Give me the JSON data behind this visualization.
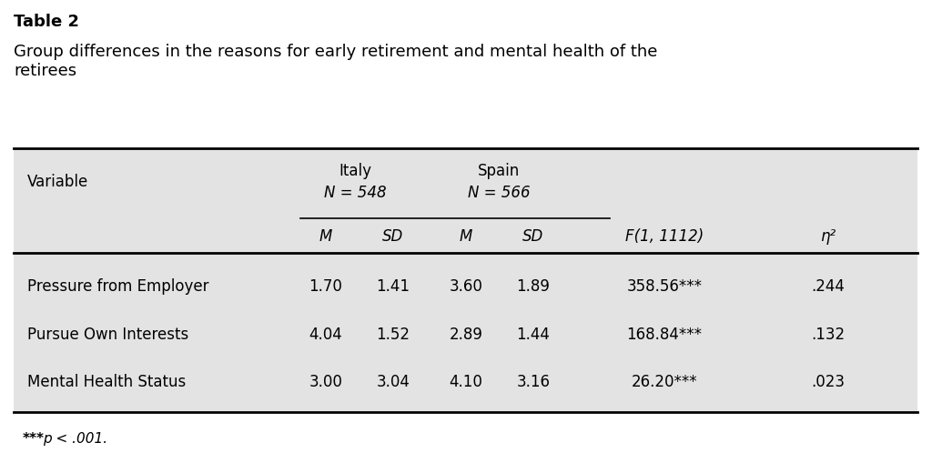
{
  "table_title_bold": "Table 2",
  "table_subtitle": "Group differences in the reasons for early retirement and mental health of the\nretirees",
  "background_color": "#e3e3e3",
  "outer_bg": "#ffffff",
  "header_row": {
    "col1": "Variable",
    "italy_label": "Italy",
    "italy_n": "N = 548",
    "spain_label": "Spain",
    "spain_n": "N = 566"
  },
  "subheader_row": {
    "m1": "M",
    "sd1": "SD",
    "m2": "M",
    "sd2": "SD",
    "f": "F(1, 1112)",
    "eta": "η²"
  },
  "rows": [
    {
      "variable": "Pressure from Employer",
      "italy_m": "1.70",
      "italy_sd": "1.41",
      "spain_m": "3.60",
      "spain_sd": "1.89",
      "f_val": "358.56***",
      "eta_val": ".244"
    },
    {
      "variable": "Pursue Own Interests",
      "italy_m": "4.04",
      "italy_sd": "1.52",
      "spain_m": "2.89",
      "spain_sd": "1.44",
      "f_val": "168.84***",
      "eta_val": ".132"
    },
    {
      "variable": "Mental Health Status",
      "italy_m": "3.00",
      "italy_sd": "3.04",
      "spain_m": "4.10",
      "spain_sd": "3.16",
      "f_val": "26.20***",
      "eta_val": ".023"
    }
  ],
  "footnote_star": "***",
  "footnote_rest": "p < .001.",
  "title_fontsize": 13,
  "subtitle_fontsize": 13,
  "header_fontsize": 12,
  "body_fontsize": 12,
  "footnote_fontsize": 11
}
